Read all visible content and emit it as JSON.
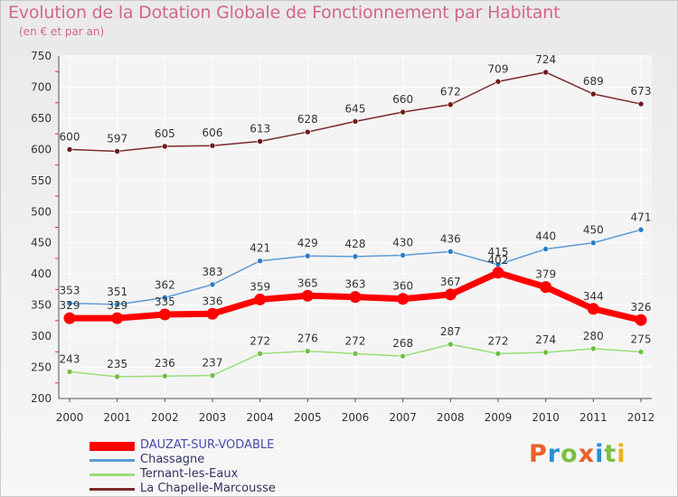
{
  "header": {
    "title": "Evolution de la Dotation Globale de Fonctionnement par Habitant",
    "subtitle": "(en € et par an)"
  },
  "logo": {
    "text": "Proxiti",
    "colors": [
      "#e8622a",
      "#2a8fd4",
      "#7cc142",
      "#e8622a",
      "#2a8fd4",
      "#7cc142",
      "#f0b020"
    ]
  },
  "chart_data": {
    "type": "line",
    "x": [
      "2000",
      "2001",
      "2002",
      "2003",
      "2004",
      "2005",
      "2006",
      "2007",
      "2008",
      "2009",
      "2010",
      "2011",
      "2012"
    ],
    "ylim": [
      200,
      750
    ],
    "yticks": [
      200,
      250,
      300,
      350,
      400,
      450,
      500,
      550,
      600,
      650,
      700,
      750
    ],
    "grid": true,
    "legend": "bottom-left",
    "series": [
      {
        "name": "DAUZAT-SUR-VODABLE",
        "color": "#ff0000",
        "values": [
          329,
          329,
          335,
          336,
          359,
          365,
          363,
          360,
          367,
          402,
          379,
          344,
          326
        ]
      },
      {
        "name": "Chassagne",
        "color": "#5b9bd5",
        "values": [
          353,
          351,
          362,
          383,
          421,
          429,
          428,
          430,
          436,
          415,
          440,
          450,
          471
        ]
      },
      {
        "name": "Ternant-les-Eaux",
        "color": "#99dd77",
        "values": [
          243,
          235,
          236,
          237,
          272,
          276,
          272,
          268,
          287,
          272,
          274,
          280,
          275
        ]
      },
      {
        "name": "La Chapelle-Marcousse",
        "color": "#7a2a2a",
        "values": [
          600,
          597,
          605,
          606,
          613,
          628,
          645,
          660,
          672,
          709,
          724,
          689,
          673
        ]
      }
    ]
  }
}
